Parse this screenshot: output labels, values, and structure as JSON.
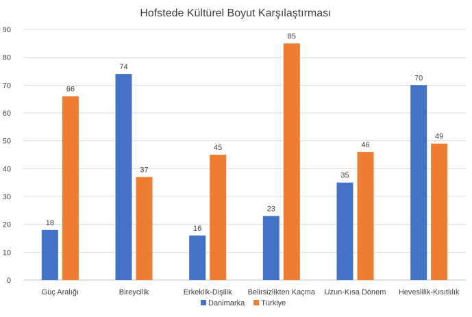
{
  "chart_data": {
    "type": "bar",
    "title": "Hofstede Kültürel Boyut Karşılaştırması",
    "xlabel": "",
    "ylabel": "",
    "ylim": [
      0,
      90
    ],
    "yticks": [
      0,
      10,
      20,
      30,
      40,
      50,
      60,
      70,
      80,
      90
    ],
    "grid": true,
    "legend_position": "bottom",
    "categories": [
      "Güç Aralığı",
      "Bireycilik",
      "Erkeklik-Dişilik",
      "Belirsizlikten Kaçma",
      "Uzun-Kısa Dönem",
      "Heveslilik-Kısıtlılık"
    ],
    "series": [
      {
        "name": "Danimarka",
        "color": "#4472c4",
        "values": [
          18,
          74,
          16,
          23,
          35,
          70
        ]
      },
      {
        "name": "Türkiye",
        "color": "#ed7d31",
        "values": [
          66,
          37,
          45,
          85,
          46,
          49
        ]
      }
    ]
  }
}
